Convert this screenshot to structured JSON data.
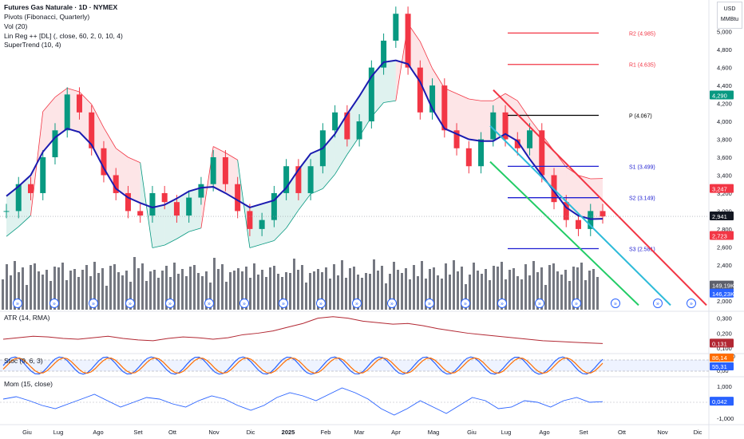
{
  "header": {
    "title": "Futures Gas Naturale · 1D · NYMEX",
    "indicators": [
      "Pivots (Fibonacci, Quarterly)",
      "Vol (20)",
      "Lin Reg ++ [DL] (, close, 60, 2, 0, 10, 4)",
      "SuperTrend (10, 4)"
    ]
  },
  "unit": {
    "currency": "USD",
    "measure": "MMBtu"
  },
  "panes": {
    "atr": "ATR (14, RMA)",
    "stoch": "Stoc (9, 6, 3)",
    "mom": "Mom (15, close)"
  },
  "colors": {
    "up": "#089981",
    "down": "#f23645",
    "supertrend_up": "#1b1bb0",
    "supertrend_down": "#f23645",
    "pivot_r": "#f23645",
    "pivot_p": "#000000",
    "pivot_s": "#1f1fd1",
    "volume": "#5d606b",
    "linreg_upper": "#f23645",
    "linreg_mid": "#2ebbd9",
    "linreg_lower": "#22cc66",
    "atr": "#b22833",
    "stoch_k": "#2962ff",
    "stoch_d": "#ff6d00",
    "mom": "#2962ff"
  },
  "chart_data": {
    "type": "candlestick",
    "x_axis": {
      "labels": [
        "Giu",
        "Lug",
        "Ago",
        "Set",
        "Ott",
        "Nov",
        "Dic",
        "2025",
        "Feb",
        "Mar",
        "Apr",
        "Mag",
        "Giu",
        "Lug",
        "Ago",
        "Set",
        "Ott",
        "Nov",
        "Dic"
      ]
    },
    "y_axis": {
      "ticks": [
        "5,000",
        "4,800",
        "4,600",
        "4,400",
        "4,200",
        "4,000",
        "3,800",
        "3,600",
        "3,400",
        "3,200",
        "3,000",
        "2,800",
        "2,600",
        "2,400",
        "2,200",
        "2,000"
      ],
      "ylim": [
        1.9,
        5.3
      ]
    },
    "price_series": [
      {
        "x": "Giu",
        "y": 3.0
      },
      {
        "x": "Giu",
        "y": 3.3
      },
      {
        "x": "Giu",
        "y": 3.2
      },
      {
        "x": "Giu",
        "y": 3.6
      },
      {
        "x": "Giu",
        "y": 3.9
      },
      {
        "x": "Giu",
        "y": 4.3
      },
      {
        "x": "Lug",
        "y": 4.1
      },
      {
        "x": "Lug",
        "y": 3.7
      },
      {
        "x": "Lug",
        "y": 3.4
      },
      {
        "x": "Lug",
        "y": 3.2
      },
      {
        "x": "Ago",
        "y": 3.0
      },
      {
        "x": "Ago",
        "y": 2.95
      },
      {
        "x": "Ago",
        "y": 3.2
      },
      {
        "x": "Ago",
        "y": 3.1
      },
      {
        "x": "Set",
        "y": 2.95
      },
      {
        "x": "Set",
        "y": 3.15
      },
      {
        "x": "Set",
        "y": 3.3
      },
      {
        "x": "Ott",
        "y": 3.6
      },
      {
        "x": "Ott",
        "y": 3.3
      },
      {
        "x": "Ott",
        "y": 3.0
      },
      {
        "x": "Nov",
        "y": 2.8
      },
      {
        "x": "Nov",
        "y": 2.9
      },
      {
        "x": "Nov",
        "y": 3.2
      },
      {
        "x": "Dic",
        "y": 3.5
      },
      {
        "x": "Dic",
        "y": 3.2
      },
      {
        "x": "Dic",
        "y": 3.5
      },
      {
        "x": "2025",
        "y": 3.9
      },
      {
        "x": "2025",
        "y": 4.1
      },
      {
        "x": "2025",
        "y": 3.8
      },
      {
        "x": "Feb",
        "y": 4.0
      },
      {
        "x": "Feb",
        "y": 4.6
      },
      {
        "x": "Feb",
        "y": 4.9
      },
      {
        "x": "Mar",
        "y": 5.2
      },
      {
        "x": "Mar",
        "y": 4.6
      },
      {
        "x": "Mar",
        "y": 4.1
      },
      {
        "x": "Apr",
        "y": 4.4
      },
      {
        "x": "Apr",
        "y": 3.9
      },
      {
        "x": "Apr",
        "y": 3.7
      },
      {
        "x": "Mag",
        "y": 3.5
      },
      {
        "x": "Mag",
        "y": 3.8
      },
      {
        "x": "Mag",
        "y": 4.1
      },
      {
        "x": "Giu",
        "y": 3.8
      },
      {
        "x": "Giu",
        "y": 3.7
      },
      {
        "x": "Giu",
        "y": 3.9
      },
      {
        "x": "Lug",
        "y": 3.4
      },
      {
        "x": "Lug",
        "y": 3.1
      },
      {
        "x": "Ago",
        "y": 2.9
      },
      {
        "x": "Ago",
        "y": 2.8
      },
      {
        "x": "Set",
        "y": 3.0
      },
      {
        "x": "Set",
        "y": 2.94
      }
    ],
    "pivots": [
      {
        "name": "R2 (4.985)",
        "value": 4.985
      },
      {
        "name": "R1 (4.635)",
        "value": 4.635
      },
      {
        "name": "P (4.067)",
        "value": 4.067
      },
      {
        "name": "S1 (3.499)",
        "value": 3.499
      },
      {
        "name": "S2 (3.149)",
        "value": 3.149
      },
      {
        "name": "S3 (2.581)",
        "value": 2.581
      }
    ],
    "price_tags": [
      {
        "label": "4,290",
        "value": 4.29,
        "color": "#089981"
      },
      {
        "label": "3,247",
        "value": 3.247,
        "color": "#f23645"
      },
      {
        "label": "2,941",
        "value": 2.941,
        "color": "#131722"
      },
      {
        "label": "2,723",
        "value": 2.723,
        "color": "#f23645"
      },
      {
        "label": "149,19K",
        "value": 2.17,
        "color": "#5d606b"
      },
      {
        "label": "146,23K",
        "value": 2.08,
        "color": "#2962ff"
      }
    ],
    "atr": {
      "ticks": [
        "0,300",
        "0,200",
        "0,100"
      ],
      "ylim": [
        0.08,
        0.33
      ],
      "last": "0,131",
      "values": [
        0.16,
        0.17,
        0.18,
        0.175,
        0.165,
        0.16,
        0.17,
        0.18,
        0.165,
        0.155,
        0.15,
        0.165,
        0.175,
        0.17,
        0.16,
        0.17,
        0.19,
        0.2,
        0.215,
        0.24,
        0.265,
        0.3,
        0.31,
        0.3,
        0.28,
        0.27,
        0.26,
        0.265,
        0.25,
        0.23,
        0.215,
        0.2,
        0.19,
        0.18,
        0.17,
        0.16,
        0.15,
        0.145,
        0.14,
        0.135,
        0.131
      ]
    },
    "stoch": {
      "ticks": [
        "100,00",
        "50,00",
        "0,00"
      ],
      "ylim": [
        0,
        100
      ],
      "k_last": "86,14",
      "d_last": "55,31"
    },
    "mom": {
      "ticks": [
        "1,000",
        "0,000",
        "-1,000"
      ],
      "ylim": [
        -1.2,
        1.3
      ],
      "last": "0,042",
      "values": [
        0.2,
        0.35,
        0.1,
        -0.2,
        -0.4,
        -0.1,
        0.2,
        0.5,
        0.1,
        -0.3,
        0.0,
        0.3,
        0.2,
        -0.1,
        -0.3,
        0.1,
        0.4,
        0.2,
        -0.2,
        -0.5,
        -0.2,
        0.3,
        0.6,
        0.4,
        0.1,
        0.5,
        0.9,
        0.6,
        0.2,
        -0.4,
        -0.8,
        -0.4,
        0.1,
        -0.3,
        -0.7,
        -0.2,
        0.3,
        0.1,
        -0.4,
        -0.3,
        0.1,
        0.0,
        -0.3,
        0.1,
        0.3,
        0.0,
        0.042
      ]
    }
  }
}
